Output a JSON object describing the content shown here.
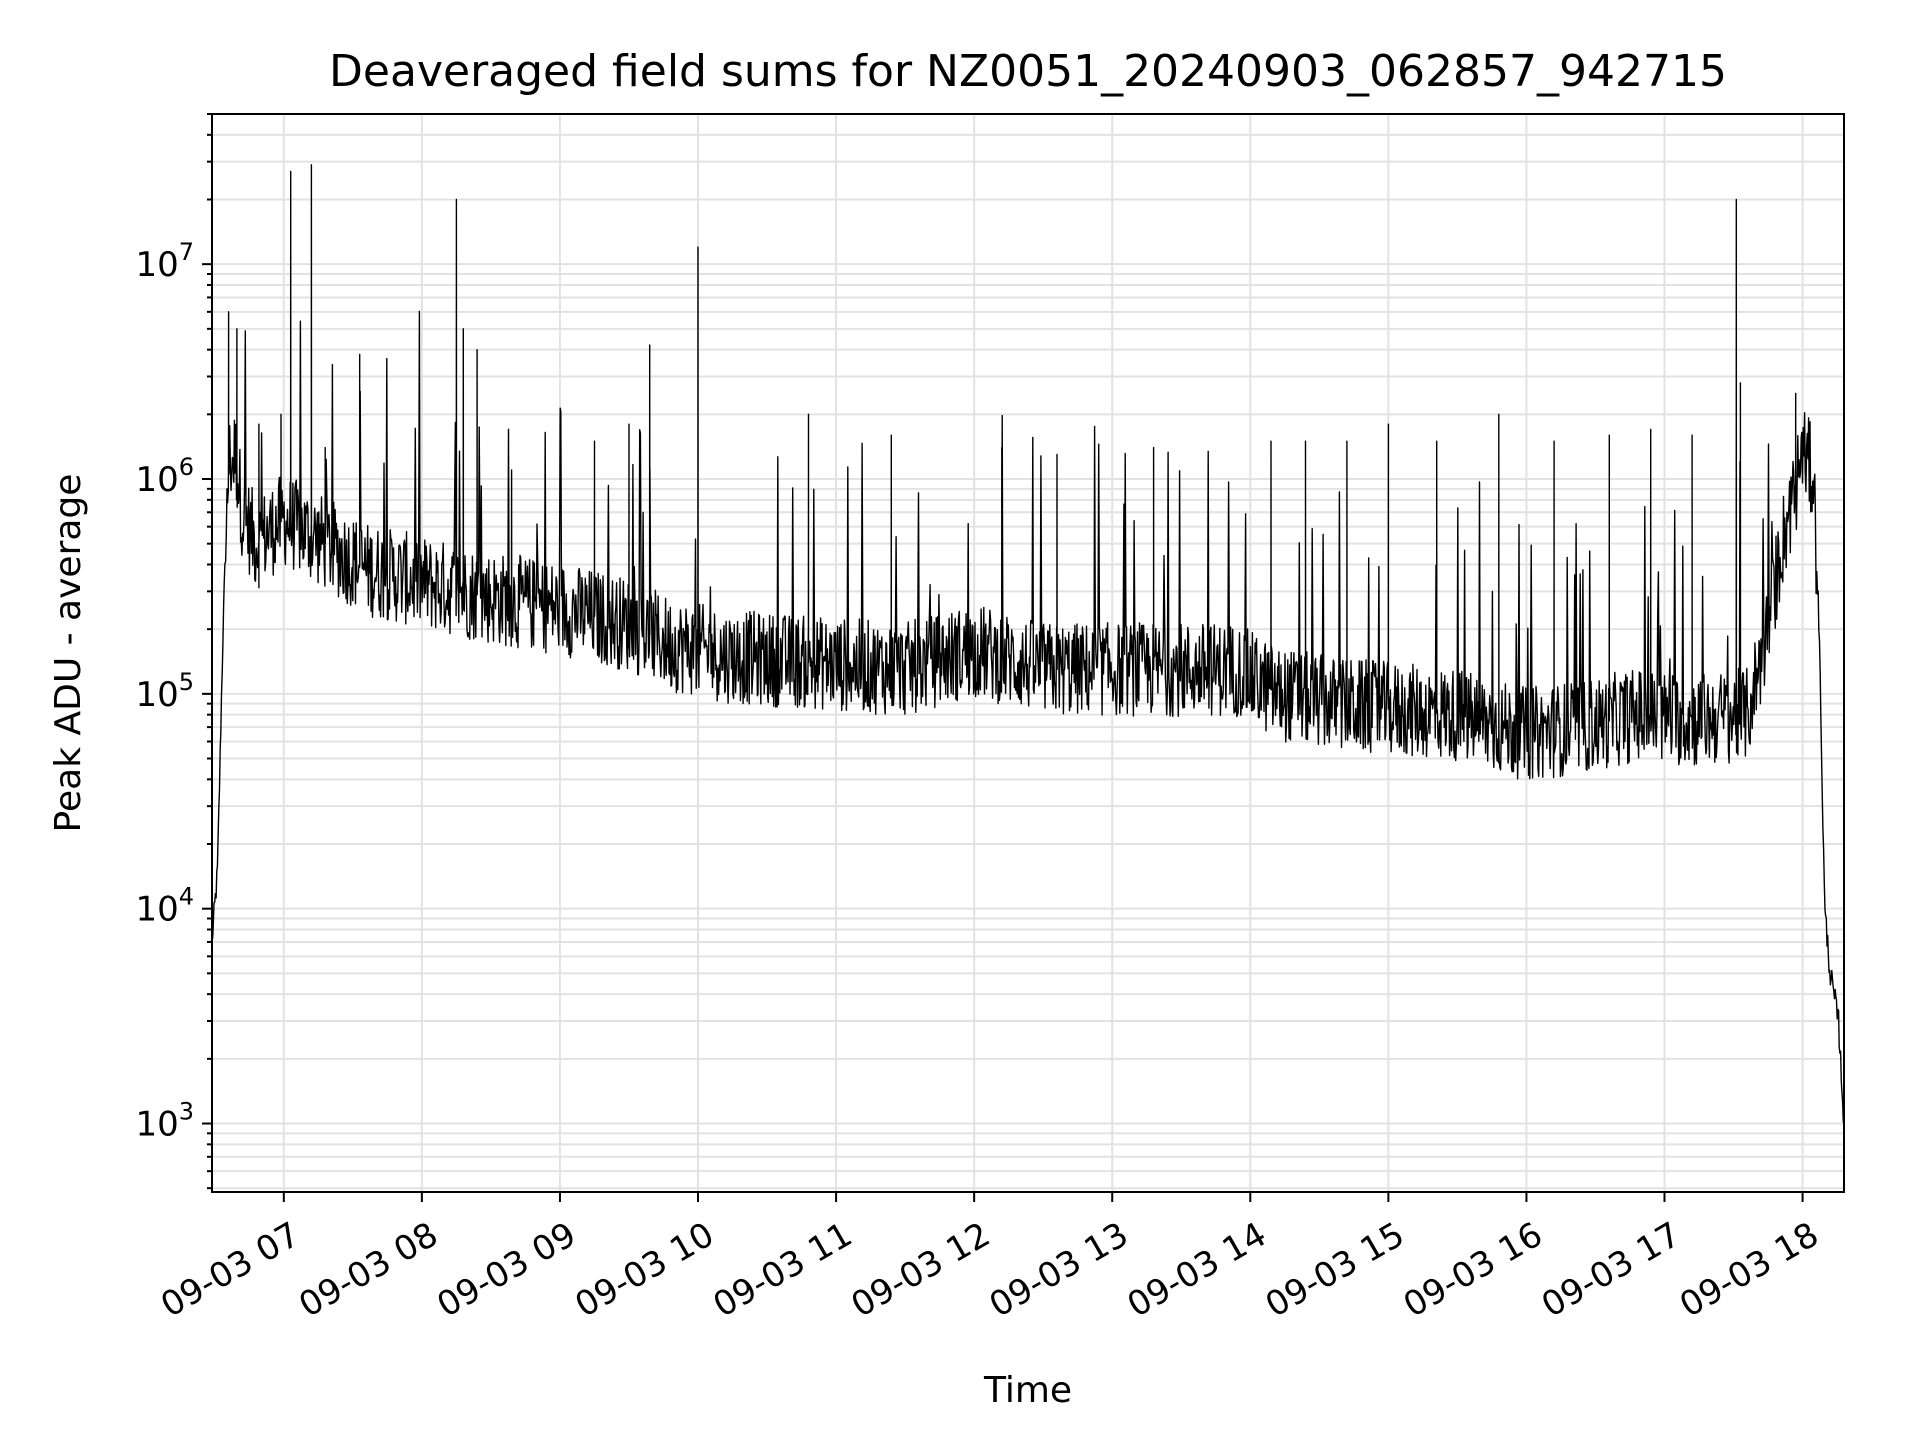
{
  "chart_data": {
    "type": "line",
    "title": "Deaveraged field sums for NZ0051_20240903_062857_942715",
    "xlabel": "Time",
    "ylabel": "Peak ADU - average",
    "yscale": "log",
    "ylim": [
      480,
      50000000
    ],
    "xlim_hours": [
      6.48,
      18.3
    ],
    "grid": true,
    "grid_which": "major and minor",
    "line_color": "#000000",
    "x_ticks": [
      {
        "label": "09-03 07",
        "hour": 7
      },
      {
        "label": "09-03 08",
        "hour": 8
      },
      {
        "label": "09-03 09",
        "hour": 9
      },
      {
        "label": "09-03 10",
        "hour": 10
      },
      {
        "label": "09-03 11",
        "hour": 11
      },
      {
        "label": "09-03 12",
        "hour": 12
      },
      {
        "label": "09-03 13",
        "hour": 13
      },
      {
        "label": "09-03 14",
        "hour": 14
      },
      {
        "label": "09-03 15",
        "hour": 15
      },
      {
        "label": "09-03 16",
        "hour": 16
      },
      {
        "label": "09-03 17",
        "hour": 17
      },
      {
        "label": "09-03 18",
        "hour": 18
      }
    ],
    "y_ticks": [
      {
        "base": "10",
        "exp": "3",
        "value": 1000
      },
      {
        "base": "10",
        "exp": "4",
        "value": 10000
      },
      {
        "base": "10",
        "exp": "5",
        "value": 100000
      },
      {
        "base": "10",
        "exp": "6",
        "value": 1000000
      },
      {
        "base": "10",
        "exp": "7",
        "value": 10000000
      }
    ],
    "series": [
      {
        "name": "",
        "baseline": [
          [
            6.48,
            7000
          ],
          [
            6.52,
            15000
          ],
          [
            6.56,
            200000
          ],
          [
            6.6,
            1200000
          ],
          [
            6.65,
            1300000
          ],
          [
            6.7,
            700000
          ],
          [
            6.8,
            500000
          ],
          [
            7.0,
            650000
          ],
          [
            7.3,
            500000
          ],
          [
            7.6,
            380000
          ],
          [
            8.0,
            330000
          ],
          [
            8.5,
            280000
          ],
          [
            9.0,
            250000
          ],
          [
            9.5,
            210000
          ],
          [
            9.8,
            170000
          ],
          [
            10.2,
            150000
          ],
          [
            10.8,
            140000
          ],
          [
            11.5,
            130000
          ],
          [
            12.0,
            160000
          ],
          [
            12.5,
            130000
          ],
          [
            13.0,
            130000
          ],
          [
            13.5,
            130000
          ],
          [
            13.9,
            130000
          ],
          [
            14.2,
            100000
          ],
          [
            14.6,
            90000
          ],
          [
            15.0,
            85000
          ],
          [
            15.5,
            80000
          ],
          [
            15.8,
            70000
          ],
          [
            16.0,
            65000
          ],
          [
            16.4,
            70000
          ],
          [
            16.8,
            80000
          ],
          [
            17.2,
            75000
          ],
          [
            17.6,
            80000
          ],
          [
            17.75,
            200000
          ],
          [
            17.85,
            500000
          ],
          [
            17.95,
            900000
          ],
          [
            18.0,
            1400000
          ],
          [
            18.08,
            1000000
          ],
          [
            18.12,
            200000
          ],
          [
            18.16,
            10000
          ],
          [
            18.2,
            5000
          ],
          [
            18.26,
            3000
          ],
          [
            18.3,
            1000
          ]
        ],
        "spikes": [
          [
            6.6,
            6000000
          ],
          [
            6.66,
            5000000
          ],
          [
            6.82,
            1800000
          ],
          [
            6.98,
            2000000
          ],
          [
            7.05,
            27000000
          ],
          [
            7.2,
            29000000
          ],
          [
            7.3,
            1400000
          ],
          [
            7.55,
            3800000
          ],
          [
            8.25,
            20000000
          ],
          [
            8.3,
            5000000
          ],
          [
            8.4,
            4000000
          ],
          [
            8.65,
            1100000
          ],
          [
            9.25,
            1500000
          ],
          [
            9.5,
            1800000
          ],
          [
            9.65,
            4200000
          ],
          [
            10.0,
            12000000
          ],
          [
            10.8,
            2000000
          ],
          [
            11.4,
            1600000
          ],
          [
            12.2,
            1400000
          ],
          [
            12.6,
            1300000
          ],
          [
            13.3,
            1400000
          ],
          [
            14.15,
            1500000
          ],
          [
            14.4,
            1500000
          ],
          [
            14.7,
            1500000
          ],
          [
            15.0,
            1800000
          ],
          [
            15.35,
            1500000
          ],
          [
            15.8,
            2000000
          ],
          [
            16.2,
            1500000
          ],
          [
            16.6,
            1600000
          ],
          [
            16.9,
            1700000
          ],
          [
            17.2,
            1600000
          ],
          [
            17.52,
            20000000
          ],
          [
            17.55,
            2800000
          ],
          [
            17.95,
            2500000
          ]
        ]
      }
    ]
  }
}
